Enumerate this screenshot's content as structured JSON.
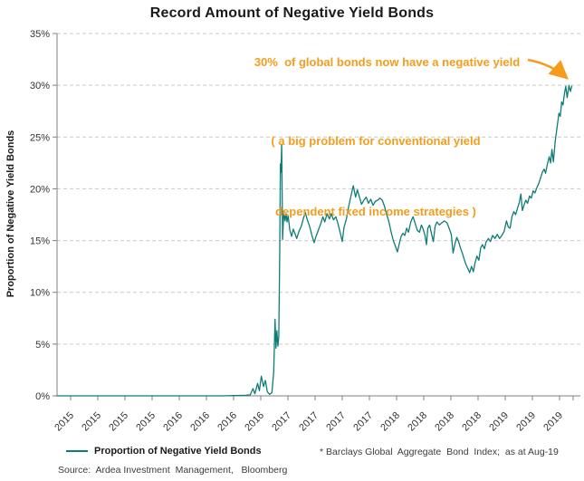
{
  "title": "Record Amount of Negative Yield Bonds",
  "annotation": {
    "line1": "30%  of global bonds now have a negative yield",
    "line2": "( a big problem for conventional yield",
    "line3": "dependent fixed income strategies )"
  },
  "legend": {
    "label": "Proportion of Negative Yield Bonds"
  },
  "footnote": "* Barclays Global  Aggregate  Bond  Index;  as at Aug-19",
  "source": "Source:  Ardea Investment  Management,   Bloomberg",
  "colors": {
    "line": "#0F7C75",
    "annotation": "#F59C1C",
    "grid": "#c9c9c9",
    "axis": "#808080",
    "title": "#1a1a1a",
    "tick_text": "#333333"
  },
  "chart_data": {
    "type": "line",
    "title": "Record Amount of Negative Yield Bonds",
    "xlabel": "",
    "ylabel": "Proportion of Negative Yield Bonds",
    "ylim": [
      0,
      35
    ],
    "ytick_step": 5,
    "yticks": [
      "0%",
      "5%",
      "10%",
      "15%",
      "20%",
      "25%",
      "30%",
      "35%"
    ],
    "xticklabels": [
      "2015",
      "2015",
      "2015",
      "2015",
      "2016",
      "2016",
      "2016",
      "2016",
      "2017",
      "2017",
      "2017",
      "2017",
      "2018",
      "2018",
      "2018",
      "2018",
      "2019",
      "2019",
      "2019"
    ],
    "x_unit": "months_since_Jan_2015",
    "x_range_months": [
      0,
      56
    ],
    "grid": true,
    "legend_position": "bottom-left",
    "series": [
      {
        "name": "Proportion of Negative Yield Bonds",
        "color": "#0F7C75",
        "points": [
          [
            0,
            0
          ],
          [
            3,
            0
          ],
          [
            6,
            0
          ],
          [
            9,
            0
          ],
          [
            12,
            0
          ],
          [
            15,
            0
          ],
          [
            18,
            0
          ],
          [
            20.5,
            0.05
          ],
          [
            21.0,
            0.1
          ],
          [
            21.3,
            0.7
          ],
          [
            21.5,
            0.2
          ],
          [
            21.8,
            1.2
          ],
          [
            22.0,
            0.5
          ],
          [
            22.2,
            1.9
          ],
          [
            22.45,
            0.9
          ],
          [
            22.65,
            1.5
          ],
          [
            22.85,
            0.4
          ],
          [
            23.1,
            0.15
          ],
          [
            23.35,
            0.3
          ],
          [
            23.55,
            2.3
          ],
          [
            23.7,
            7.4
          ],
          [
            23.8,
            4.6
          ],
          [
            23.9,
            6.3
          ],
          [
            24.0,
            4.8
          ],
          [
            24.1,
            5.7
          ],
          [
            24.2,
            13.5
          ],
          [
            24.28,
            22.4
          ],
          [
            24.34,
            21.6
          ],
          [
            24.42,
            24.3
          ],
          [
            24.52,
            15.1
          ],
          [
            24.65,
            17.9
          ],
          [
            24.78,
            16.9
          ],
          [
            24.9,
            17.6
          ],
          [
            25.0,
            16.8
          ],
          [
            25.12,
            17.4
          ],
          [
            25.3,
            16.0
          ],
          [
            25.5,
            15.4
          ],
          [
            25.68,
            16.1
          ],
          [
            25.85,
            15.7
          ],
          [
            26.05,
            15.2
          ],
          [
            26.3,
            15.9
          ],
          [
            26.55,
            16.4
          ],
          [
            26.8,
            17.2
          ],
          [
            27.0,
            17.7
          ],
          [
            27.2,
            17.0
          ],
          [
            27.45,
            16.4
          ],
          [
            27.7,
            15.5
          ],
          [
            27.95,
            14.8
          ],
          [
            28.15,
            15.4
          ],
          [
            28.4,
            16.0
          ],
          [
            28.65,
            16.6
          ],
          [
            28.9,
            17.3
          ],
          [
            29.1,
            16.8
          ],
          [
            29.35,
            17.6
          ],
          [
            29.6,
            17.1
          ],
          [
            29.8,
            17.6
          ],
          [
            30.05,
            17.0
          ],
          [
            30.3,
            17.3
          ],
          [
            30.55,
            16.6
          ],
          [
            30.8,
            15.7
          ],
          [
            31.0,
            14.9
          ],
          [
            31.2,
            16.3
          ],
          [
            31.45,
            17.1
          ],
          [
            31.7,
            18.3
          ],
          [
            31.95,
            19.3
          ],
          [
            32.2,
            20.3
          ],
          [
            32.45,
            19.2
          ],
          [
            32.65,
            19.9
          ],
          [
            32.9,
            19.1
          ],
          [
            33.1,
            18.5
          ],
          [
            33.35,
            18.9
          ],
          [
            33.6,
            19.2
          ],
          [
            33.85,
            18.6
          ],
          [
            34.1,
            19.0
          ],
          [
            34.35,
            18.4
          ],
          [
            34.6,
            18.8
          ],
          [
            34.85,
            18.9
          ],
          [
            35.1,
            19.1
          ],
          [
            35.35,
            18.9
          ],
          [
            35.6,
            18.3
          ],
          [
            35.8,
            17.6
          ],
          [
            36.05,
            16.9
          ],
          [
            36.3,
            15.9
          ],
          [
            36.55,
            15.0
          ],
          [
            36.8,
            14.4
          ],
          [
            37.0,
            13.9
          ],
          [
            37.2,
            14.7
          ],
          [
            37.4,
            15.4
          ],
          [
            37.6,
            15.7
          ],
          [
            37.8,
            15.5
          ],
          [
            38.0,
            16.2
          ],
          [
            38.2,
            15.8
          ],
          [
            38.45,
            16.8
          ],
          [
            38.7,
            17.3
          ],
          [
            38.95,
            16.6
          ],
          [
            39.15,
            16.0
          ],
          [
            39.4,
            15.8
          ],
          [
            39.6,
            16.5
          ],
          [
            39.8,
            16.1
          ],
          [
            40.0,
            15.5
          ],
          [
            40.15,
            14.6
          ],
          [
            40.3,
            16.2
          ],
          [
            40.5,
            16.5
          ],
          [
            40.7,
            15.7
          ],
          [
            40.9,
            14.9
          ],
          [
            41.1,
            16.4
          ],
          [
            41.3,
            16.8
          ],
          [
            41.55,
            16.5
          ],
          [
            41.8,
            16.7
          ],
          [
            42.1,
            16.9
          ],
          [
            42.4,
            16.7
          ],
          [
            42.65,
            16.1
          ],
          [
            42.85,
            15.6
          ],
          [
            43.05,
            13.8
          ],
          [
            43.25,
            14.7
          ],
          [
            43.45,
            15.3
          ],
          [
            43.65,
            14.9
          ],
          [
            43.85,
            14.3
          ],
          [
            44.05,
            13.8
          ],
          [
            44.25,
            13.2
          ],
          [
            44.45,
            12.7
          ],
          [
            44.65,
            12.3
          ],
          [
            44.85,
            11.9
          ],
          [
            45.05,
            12.5
          ],
          [
            45.25,
            12.0
          ],
          [
            45.45,
            12.9
          ],
          [
            45.65,
            13.5
          ],
          [
            45.85,
            13.1
          ],
          [
            46.05,
            14.3
          ],
          [
            46.25,
            14.6
          ],
          [
            46.45,
            14.2
          ],
          [
            46.65,
            14.9
          ],
          [
            46.9,
            15.2
          ],
          [
            47.1,
            14.9
          ],
          [
            47.35,
            15.5
          ],
          [
            47.6,
            15.2
          ],
          [
            47.85,
            15.6
          ],
          [
            48.1,
            15.2
          ],
          [
            48.35,
            15.5
          ],
          [
            48.6,
            15.9
          ],
          [
            48.85,
            16.9
          ],
          [
            49.05,
            16.3
          ],
          [
            49.25,
            16.2
          ],
          [
            49.45,
            17.3
          ],
          [
            49.65,
            17.8
          ],
          [
            49.85,
            17.5
          ],
          [
            50.05,
            18.1
          ],
          [
            50.25,
            18.7
          ],
          [
            50.42,
            19.5
          ],
          [
            50.58,
            17.9
          ],
          [
            50.75,
            18.4
          ],
          [
            50.95,
            18.9
          ],
          [
            51.15,
            18.6
          ],
          [
            51.35,
            19.3
          ],
          [
            51.55,
            19.1
          ],
          [
            51.75,
            19.8
          ],
          [
            51.95,
            19.6
          ],
          [
            52.15,
            20.1
          ],
          [
            52.35,
            20.5
          ],
          [
            52.55,
            21.0
          ],
          [
            52.75,
            21.6
          ],
          [
            52.95,
            21.9
          ],
          [
            53.1,
            21.5
          ],
          [
            53.3,
            22.4
          ],
          [
            53.5,
            23.1
          ],
          [
            53.65,
            22.5
          ],
          [
            53.8,
            23.8
          ],
          [
            53.95,
            22.6
          ],
          [
            54.15,
            24.6
          ],
          [
            54.35,
            25.9
          ],
          [
            54.55,
            27.3
          ],
          [
            54.7,
            27.0
          ],
          [
            54.85,
            28.4
          ],
          [
            55.0,
            28.1
          ],
          [
            55.15,
            29.2
          ],
          [
            55.3,
            29.9
          ],
          [
            55.45,
            28.8
          ],
          [
            55.65,
            30.0
          ],
          [
            55.8,
            29.4
          ],
          [
            55.95,
            29.9
          ]
        ]
      }
    ]
  }
}
